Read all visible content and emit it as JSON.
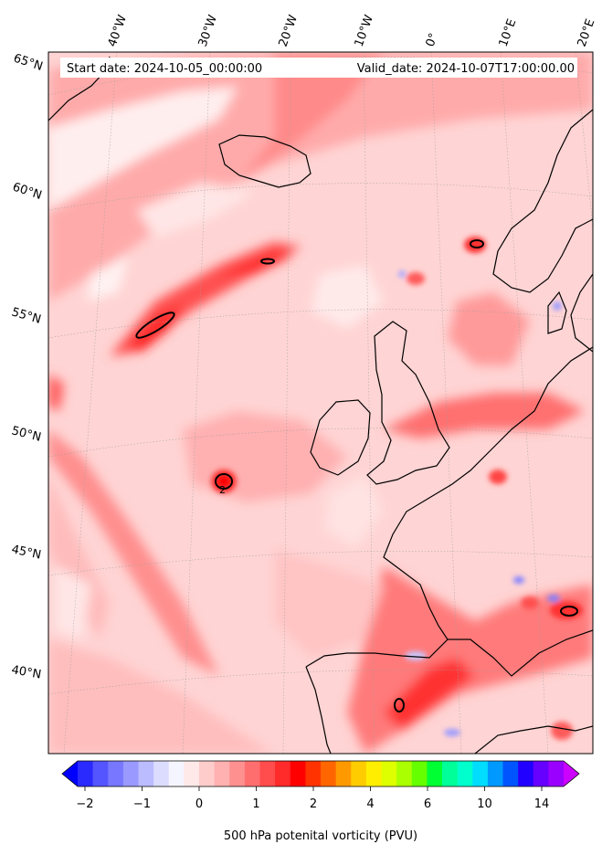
{
  "header": {
    "start_date": "Start date: 2024-10-05_00:00:00",
    "valid_date": "Valid_date: 2024-10-07T17:00:00.00"
  },
  "map": {
    "longitude_labels": [
      "40°W",
      "30°W",
      "20°W",
      "10°W",
      "0°",
      "10°E",
      "20°E"
    ],
    "latitude_labels": [
      "65°N",
      "60°N",
      "55°N",
      "50°N",
      "45°N",
      "40°N"
    ],
    "contour_labels": [
      "2"
    ]
  },
  "colorbar": {
    "title": "500 hPa potenital vorticity (PVU)",
    "tick_labels": [
      "−2",
      "−1",
      "0",
      "1",
      "2",
      "4",
      "6",
      "10",
      "14"
    ],
    "colors": [
      "#0000ff",
      "#2a2aff",
      "#5555ff",
      "#7777ff",
      "#9999ff",
      "#bbbbff",
      "#dcdcff",
      "#f5f5ff",
      "#ffe8e8",
      "#ffcccc",
      "#ffb0b0",
      "#ff9090",
      "#ff6e6e",
      "#ff4c4c",
      "#ff2a2a",
      "#ff0000",
      "#ff3300",
      "#ff6600",
      "#ff9900",
      "#ffcc00",
      "#ffee00",
      "#ddff00",
      "#aaff00",
      "#66ff00",
      "#00ff33",
      "#00ff99",
      "#00ffcc",
      "#00ddff",
      "#0099ff",
      "#0055ff",
      "#2200ff",
      "#6600ff",
      "#9900ff",
      "#cc00ff"
    ]
  }
}
